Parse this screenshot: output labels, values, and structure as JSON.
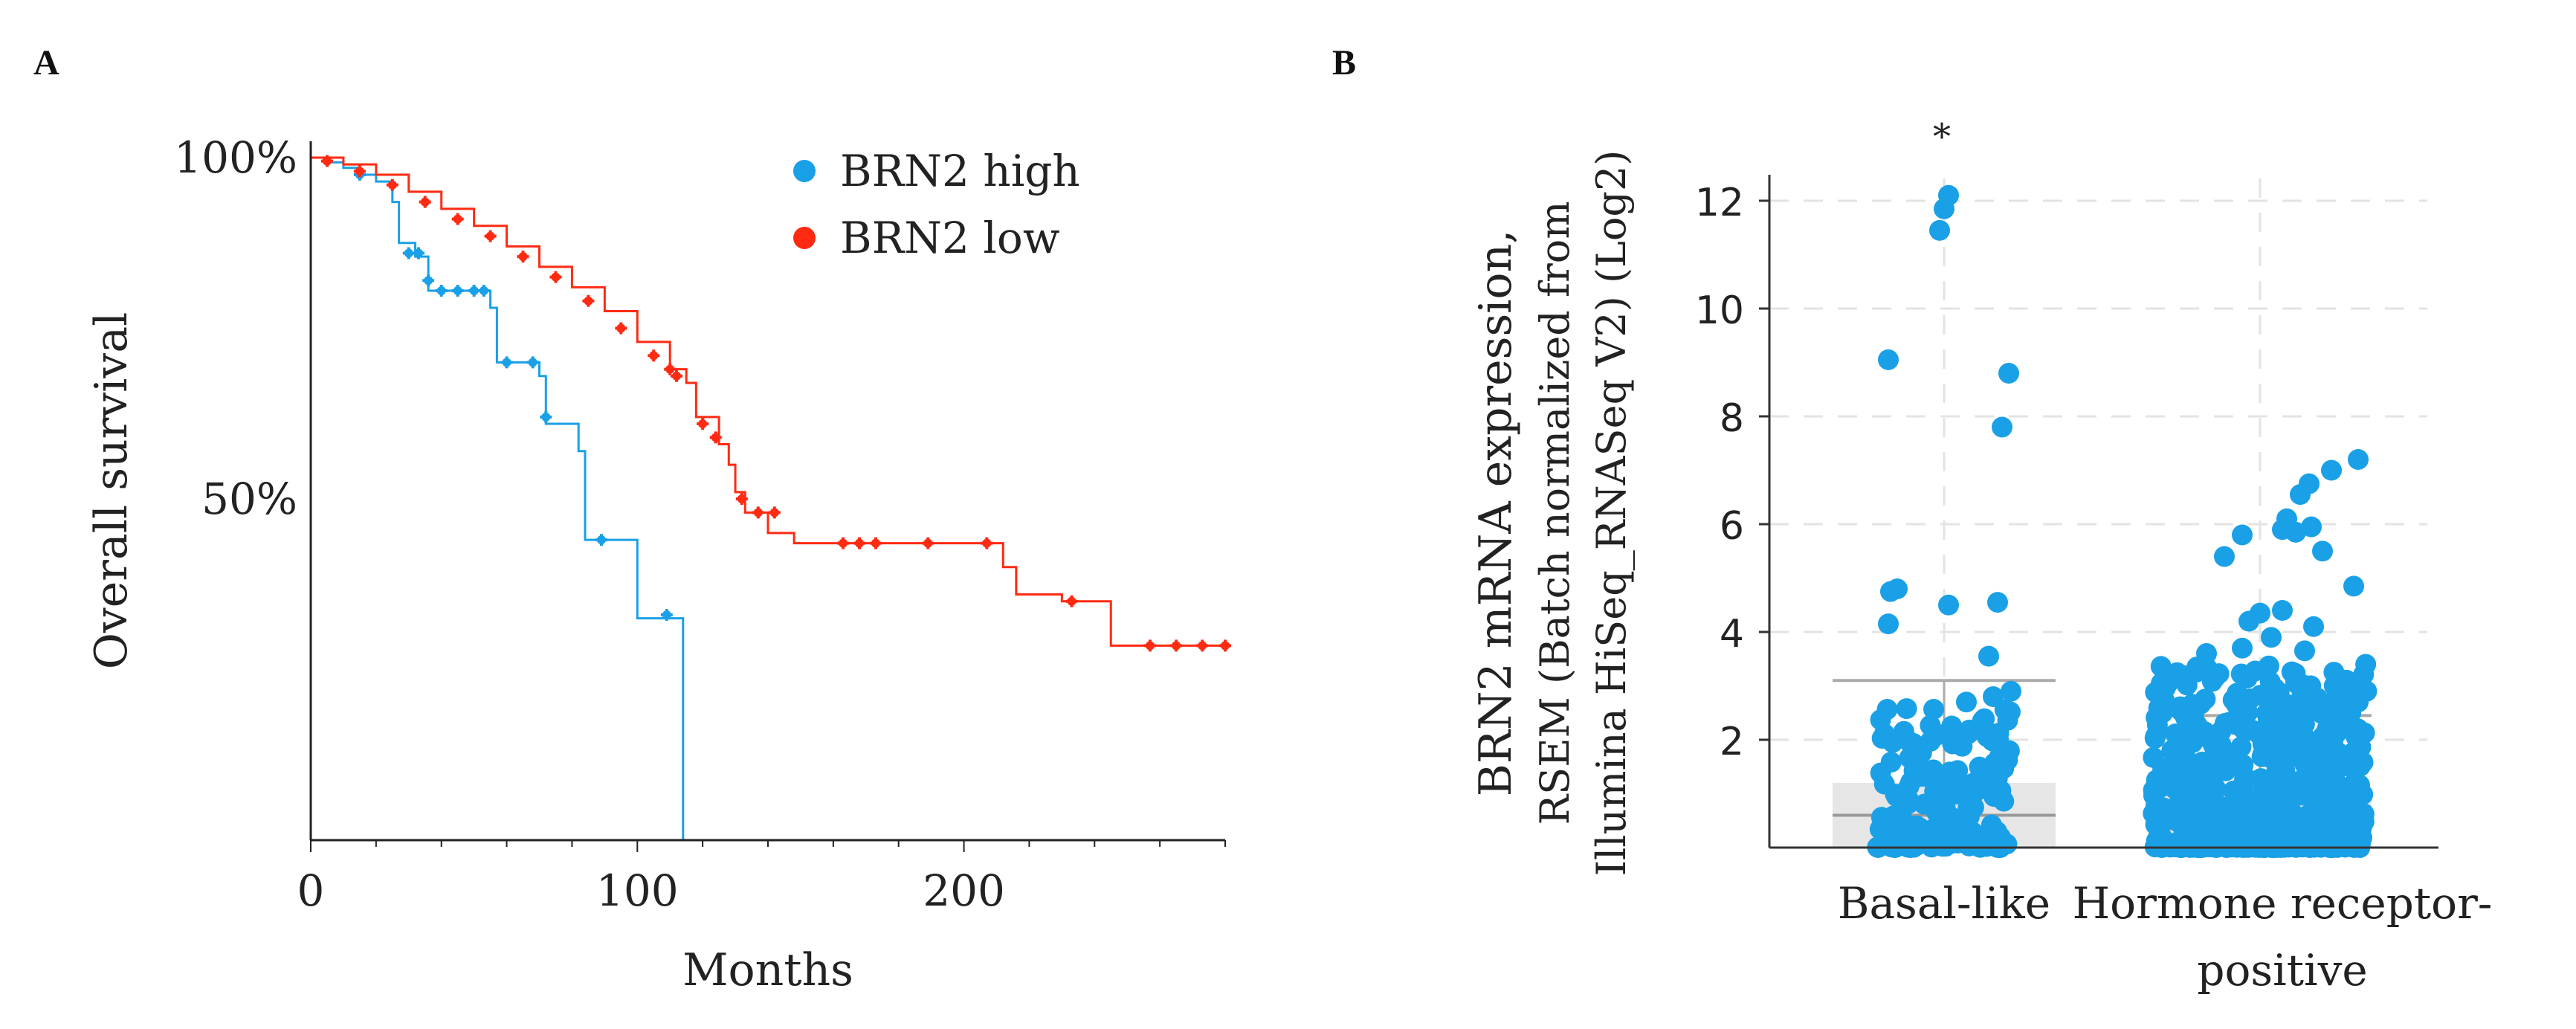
{
  "panels": {
    "a": {
      "letter": "A"
    },
    "b": {
      "letter": "B"
    }
  },
  "chart_data": [
    {
      "type": "line",
      "subtype": "kaplan-meier",
      "panel": "A",
      "title": "",
      "xlabel": "Months",
      "ylabel": "Overall survival",
      "xlim": [
        0,
        280
      ],
      "ylim": [
        0,
        100
      ],
      "x_ticks": [
        0,
        100,
        200
      ],
      "x_tick_labels": [
        "0",
        "100",
        "200"
      ],
      "y_ticks": [
        50,
        100
      ],
      "y_tick_labels": [
        "50%",
        "100%"
      ],
      "legend_position": "top-right",
      "series": [
        {
          "name": "BRN2 high",
          "color": "#1aa0e6",
          "steps": [
            [
              0,
              100
            ],
            [
              4,
              99.3
            ],
            [
              10,
              98.5
            ],
            [
              15,
              97.5
            ],
            [
              20,
              96.5
            ],
            [
              25,
              93.5
            ],
            [
              27,
              87.5
            ],
            [
              32,
              85.5
            ],
            [
              36,
              80.5
            ],
            [
              55,
              78
            ],
            [
              57,
              70
            ],
            [
              70,
              68
            ],
            [
              72,
              61
            ],
            [
              82,
              57
            ],
            [
              84,
              44
            ],
            [
              99,
              44
            ],
            [
              100,
              32.5
            ],
            [
              113,
              32.5
            ],
            [
              114,
              0
            ]
          ],
          "censored": [
            [
              15,
              97.5
            ],
            [
              30,
              86
            ],
            [
              33,
              86
            ],
            [
              36,
              82
            ],
            [
              40,
              80.5
            ],
            [
              45,
              80.5
            ],
            [
              50,
              80.5
            ],
            [
              53,
              80.5
            ],
            [
              60,
              70
            ],
            [
              68,
              70
            ],
            [
              72,
              62
            ],
            [
              89,
              44
            ],
            [
              109,
              33
            ]
          ]
        },
        {
          "name": "BRN2 low",
          "color": "#ff2a12",
          "steps": [
            [
              0,
              100
            ],
            [
              10,
              99
            ],
            [
              20,
              97.5
            ],
            [
              30,
              95
            ],
            [
              40,
              92.5
            ],
            [
              50,
              90
            ],
            [
              60,
              87
            ],
            [
              70,
              84
            ],
            [
              80,
              81
            ],
            [
              90,
              77.5
            ],
            [
              100,
              73
            ],
            [
              110,
              69
            ],
            [
              115,
              67
            ],
            [
              118,
              62
            ],
            [
              125,
              58
            ],
            [
              128,
              55
            ],
            [
              130,
              51
            ],
            [
              133,
              48
            ],
            [
              140,
              45
            ],
            [
              148,
              43.5
            ],
            [
              210,
              43.5
            ],
            [
              212,
              40
            ],
            [
              216,
              36
            ],
            [
              230,
              35
            ],
            [
              243,
              35
            ],
            [
              245,
              28.5
            ],
            [
              280,
              28.5
            ]
          ],
          "censored": [
            [
              5,
              99.5
            ],
            [
              15,
              98
            ],
            [
              25,
              96
            ],
            [
              35,
              93.5
            ],
            [
              45,
              91
            ],
            [
              55,
              88.5
            ],
            [
              65,
              85.5
            ],
            [
              75,
              82.5
            ],
            [
              85,
              79
            ],
            [
              95,
              75
            ],
            [
              105,
              71
            ],
            [
              110,
              69
            ],
            [
              112,
              68
            ],
            [
              120,
              61
            ],
            [
              124,
              59
            ],
            [
              132,
              50
            ],
            [
              137,
              48
            ],
            [
              142,
              48
            ],
            [
              163,
              43.5
            ],
            [
              168,
              43.5
            ],
            [
              173,
              43.5
            ],
            [
              189,
              43.5
            ],
            [
              207,
              43.5
            ],
            [
              233,
              35
            ],
            [
              257,
              28.5
            ],
            [
              265,
              28.5
            ],
            [
              273,
              28.5
            ],
            [
              280,
              28.5
            ]
          ]
        }
      ]
    },
    {
      "type": "scatter",
      "subtype": "strip-box",
      "panel": "B",
      "title": "",
      "annotation": "*",
      "ylabel_lines": [
        "BRN2 mRNA expression,",
        "RSEM (Batch normalized from",
        "Illumina HiSeq_RNASeq V2) (Log2)"
      ],
      "ylim": [
        0,
        12.8
      ],
      "y_ticks": [
        2,
        4,
        6,
        8,
        10,
        12
      ],
      "y_tick_labels": [
        "2",
        "4",
        "6",
        "8",
        "10",
        "12"
      ],
      "color": "#1aa0e6",
      "categories": [
        {
          "name_lines": [
            "Basal-like"
          ],
          "box": {
            "q1": 0,
            "median": 0.6,
            "q3": 1.2,
            "whisker_high": 3.1
          },
          "outliers": [
            [
              0.02,
              12.1
            ],
            [
              0.0,
              11.85
            ],
            [
              -0.02,
              11.45
            ],
            [
              -0.25,
              9.05
            ],
            [
              0.29,
              8.8
            ],
            [
              0.26,
              7.8
            ],
            [
              -0.21,
              4.8
            ],
            [
              -0.24,
              4.75
            ],
            [
              -0.25,
              4.15
            ],
            [
              0.02,
              4.5
            ],
            [
              0.24,
              4.55
            ],
            [
              0.2,
              3.55
            ],
            [
              0.3,
              2.9
            ],
            [
              0.22,
              2.8
            ],
            [
              0.1,
              2.7
            ]
          ]
        },
        {
          "name_lines": [
            "Hormone receptor-",
            "positive"
          ],
          "box": {
            "q1": 0,
            "median": 0.35,
            "q3": 0.95,
            "whisker_high": 2.45
          },
          "outliers": [
            [
              0.44,
              7.2
            ],
            [
              0.32,
              7.0
            ],
            [
              0.22,
              6.75
            ],
            [
              0.18,
              6.55
            ],
            [
              0.12,
              6.1
            ],
            [
              0.1,
              5.9
            ],
            [
              0.23,
              5.95
            ],
            [
              0.16,
              5.85
            ],
            [
              -0.08,
              5.8
            ],
            [
              -0.16,
              5.4
            ],
            [
              0.28,
              5.5
            ],
            [
              0.42,
              4.85
            ],
            [
              0.0,
              4.35
            ],
            [
              0.1,
              4.4
            ],
            [
              -0.05,
              4.2
            ],
            [
              0.24,
              4.1
            ],
            [
              0.05,
              3.9
            ],
            [
              -0.24,
              3.6
            ],
            [
              -0.08,
              3.7
            ],
            [
              0.2,
              3.65
            ],
            [
              0.45,
              3.0
            ]
          ]
        }
      ]
    }
  ]
}
